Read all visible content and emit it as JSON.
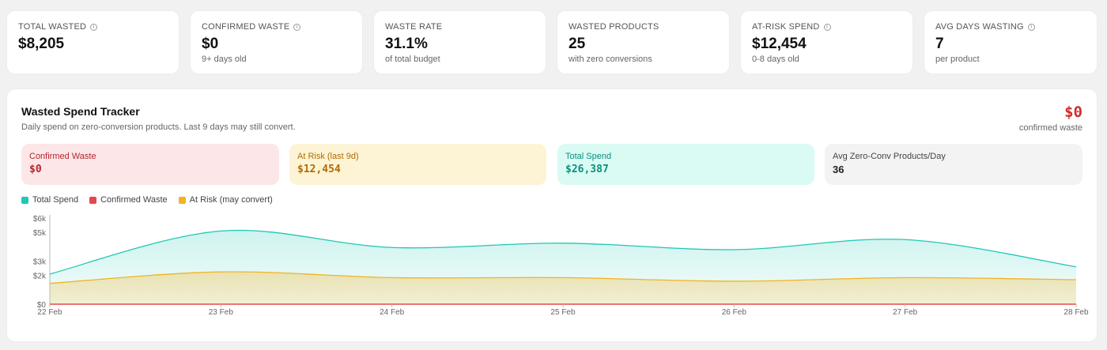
{
  "kpis": [
    {
      "label": "TOTAL WASTED",
      "info": true,
      "value": "$8,205",
      "sub": ""
    },
    {
      "label": "CONFIRMED WASTE",
      "info": true,
      "value": "$0",
      "sub": "9+ days old"
    },
    {
      "label": "WASTE RATE",
      "info": false,
      "value": "31.1%",
      "sub": "of total budget"
    },
    {
      "label": "WASTED PRODUCTS",
      "info": false,
      "value": "25",
      "sub": "with zero conversions"
    },
    {
      "label": "AT-RISK SPEND",
      "info": true,
      "value": "$12,454",
      "sub": "0-8 days old"
    },
    {
      "label": "AVG DAYS WASTING",
      "info": true,
      "value": "7",
      "sub": "per product"
    }
  ],
  "panel": {
    "title": "Wasted Spend Tracker",
    "subtitle": "Daily spend on zero-conversion products. Last 9 days may still convert.",
    "big_value": "$0",
    "big_label": "confirmed waste"
  },
  "stats": [
    {
      "label": "Confirmed Waste",
      "value": "$0"
    },
    {
      "label": "At Risk (last 9d)",
      "value": "$12,454"
    },
    {
      "label": "Total Spend",
      "value": "$26,387"
    },
    {
      "label": "Avg Zero-Conv Products/Day",
      "value": "36"
    }
  ],
  "legend": [
    {
      "label": "Total Spend",
      "color": "#1fc8b4"
    },
    {
      "label": "Confirmed Waste",
      "color": "#e5484d"
    },
    {
      "label": "At Risk (may convert)",
      "color": "#f2b322"
    }
  ],
  "chart_data": {
    "type": "area",
    "x": [
      "22 Feb",
      "23 Feb",
      "24 Feb",
      "25 Feb",
      "26 Feb",
      "27 Feb",
      "28 Feb"
    ],
    "y_ticks": [
      "$0",
      "$2k",
      "$3k",
      "$5k",
      "$6k"
    ],
    "ylim": [
      0,
      6000
    ],
    "series": [
      {
        "name": "Total Spend",
        "color": "#1fc8b4",
        "values": [
          2100,
          5100,
          3950,
          4250,
          3800,
          4500,
          2600
        ]
      },
      {
        "name": "Confirmed Waste",
        "color": "#e5484d",
        "values": [
          0,
          0,
          0,
          0,
          0,
          0,
          0
        ]
      },
      {
        "name": "At Risk (may convert)",
        "color": "#f2b322",
        "values": [
          1450,
          2250,
          1850,
          1850,
          1600,
          1850,
          1700
        ]
      }
    ]
  }
}
